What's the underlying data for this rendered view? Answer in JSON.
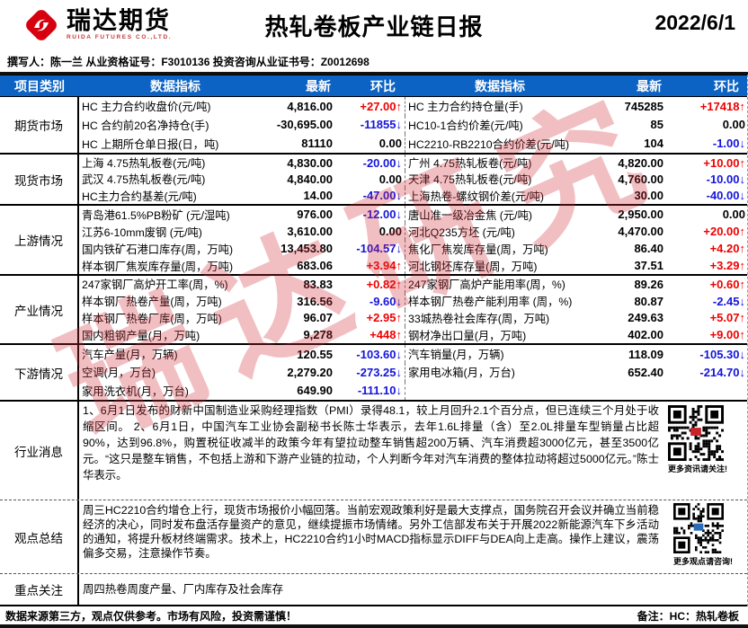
{
  "colors": {
    "header_bg": "#0c63c4",
    "up_red": "#ef0000",
    "down_blue": "#1414dc",
    "logo_red": "#d7000f",
    "watermark_red": "#d12a34"
  },
  "header": {
    "logo_text": "瑞达期货",
    "logo_sub": "RUIDA FUTURES CO.,LTD.",
    "title": "热轧卷板产业链日报",
    "date": "2022/6/1",
    "byline": "撰写人：陈一兰  从业资格证号：F3010136   投资咨询从业证书号：Z0012698"
  },
  "watermark": "瑞达研究",
  "table": {
    "headers": [
      "项目类别",
      "数据指标",
      "最新",
      "环比",
      "数据指标",
      "最新",
      "环比"
    ],
    "sections": [
      {
        "category": "期货市场",
        "rows": [
          {
            "left_label": "HC 主力合约收盘价(元/吨)",
            "left_value": "4,816.00",
            "left_change": "+27.00↑",
            "left_dir": "up",
            "right_label": "HC 主力合约持仓量(手)",
            "right_value": "745285",
            "right_change": "+17418↑",
            "right_dir": "up"
          },
          {
            "left_label": "HC 合约前20名净持仓(手)",
            "left_value": "-30,695.00",
            "left_change": "-11855↓",
            "left_dir": "down",
            "right_label": "HC10-1合约价差(元/吨)",
            "right_value": "85",
            "right_change": "0.00",
            "right_dir": "flat"
          },
          {
            "left_label": "HC 上期所仓单日报(日，吨)",
            "left_value": "81110",
            "left_change": "0.00",
            "left_dir": "flat",
            "right_label": "HC2210-RB2210合约价差(元/吨)",
            "right_value": "104",
            "right_change": "-1.00↓",
            "right_dir": "down"
          }
        ]
      },
      {
        "category": "现货市场",
        "rows": [
          {
            "left_label": "上海 4.75热轧板卷(元/吨)",
            "left_value": "4,830.00",
            "left_change": "-20.00↓",
            "left_dir": "down",
            "right_label": "广州 4.75热轧板卷(元/吨)",
            "right_value": "4,820.00",
            "right_change": "+10.00↑",
            "right_dir": "up"
          },
          {
            "left_label": "武汉 4.75热轧板卷(元/吨)",
            "left_value": "4,840.00",
            "left_change": "0.00",
            "left_dir": "flat",
            "right_label": "天津 4.75热轧板卷(元/吨)",
            "right_value": "4,760.00",
            "right_change": "-10.00↓",
            "right_dir": "down"
          },
          {
            "left_label": "HC主力合约基差(元/吨)",
            "left_value": "14.00",
            "left_change": "-47.00↓",
            "left_dir": "down",
            "right_label": "上海热卷-螺纹钢价差(元/吨)",
            "right_value": "30.00",
            "right_change": "-40.00↓",
            "right_dir": "down"
          }
        ]
      },
      {
        "category": "上游情况",
        "rows": [
          {
            "left_label": "青岛港61.5%PB粉矿 (元/湿吨)",
            "left_value": "976.00",
            "left_change": "-12.00↓",
            "left_dir": "down",
            "right_label": "唐山准一级冶金焦 (元/吨)",
            "right_value": "2,950.00",
            "right_change": "0.00",
            "right_dir": "flat"
          },
          {
            "left_label": "江苏6-10mm废钢 (元/吨)",
            "left_value": "3,610.00",
            "left_change": "0.00",
            "left_dir": "flat",
            "right_label": "河北Q235方坯 (元/吨)",
            "right_value": "4,470.00",
            "right_change": "+20.00↑",
            "right_dir": "up"
          },
          {
            "left_label": "国内铁矿石港口库存(周，万吨)",
            "left_value": "13,453.80",
            "left_change": "-104.57↓",
            "left_dir": "down",
            "right_label": "焦化厂焦炭库存量(周，万吨)",
            "right_value": "86.40",
            "right_change": "+4.20↑",
            "right_dir": "up"
          },
          {
            "left_label": "样本钢厂焦炭库存量(周，万吨)",
            "left_value": "683.06",
            "left_change": "+3.94↑",
            "left_dir": "up",
            "right_label": "河北钢坯库存量(周，万吨)",
            "right_value": "37.51",
            "right_change": "+3.29↑",
            "right_dir": "up"
          }
        ]
      },
      {
        "category": "产业情况",
        "rows": [
          {
            "left_label": "247家钢厂高炉开工率(周，%)",
            "left_value": "83.83",
            "left_change": "+0.82↑",
            "left_dir": "up",
            "right_label": "247家钢厂高炉产能用率(周，%)",
            "right_value": "89.26",
            "right_change": "+0.60↑",
            "right_dir": "up"
          },
          {
            "left_label": "样本钢厂热卷产量(周，万吨)",
            "left_value": "316.56",
            "left_change": "-9.60↓",
            "left_dir": "down",
            "right_label": "样本钢厂热卷产能利用率 (周，%)",
            "right_value": "80.87",
            "right_change": "-2.45↓",
            "right_dir": "down"
          },
          {
            "left_label": "样本钢厂热卷厂库(周，万吨)",
            "left_value": "96.07",
            "left_change": "+2.95↑",
            "left_dir": "up",
            "right_label": "33城热卷社会库存(周，万吨)",
            "right_value": "249.63",
            "right_change": "+5.07↑",
            "right_dir": "up"
          },
          {
            "left_label": "国内粗钢产量(月，万吨)",
            "left_value": "9,278",
            "left_change": "+448↑",
            "left_dir": "up",
            "right_label": "钢材净出口量(月，万吨)",
            "right_value": "402.00",
            "right_change": "+9.00↑",
            "right_dir": "up"
          }
        ]
      },
      {
        "category": "下游情况",
        "rows": [
          {
            "left_label": "汽车产量(月，万辆)",
            "left_value": "120.55",
            "left_change": "-103.60↓",
            "left_dir": "down",
            "right_label": "汽车销量(月，万辆)",
            "right_value": "118.09",
            "right_change": "-105.30↓",
            "right_dir": "down"
          },
          {
            "left_label": "空调(月，万台)",
            "left_value": "2,279.20",
            "left_change": "-273.25↓",
            "left_dir": "down",
            "right_label": "家用电冰箱(月，万台)",
            "right_value": "652.40",
            "right_change": "-214.70↓",
            "right_dir": "down"
          },
          {
            "left_label": "家用洗衣机(月，万台)",
            "left_value": "649.90",
            "left_change": "-111.10↓",
            "left_dir": "down",
            "right_label": "",
            "right_value": "",
            "right_change": "",
            "right_dir": "flat"
          }
        ]
      }
    ],
    "news": {
      "category": "行业消息",
      "text": "1、6月1日发布的财新中国制造业采购经理指数（PMI）录得48.1，较上月回升2.1个百分点，但已连续三个月处于收缩区间。 2、6月1日，中国汽车工业协会副秘书长陈士华表示，去年1.6L排量（含）至2.0L排量车型销量占比超90%，达到96.8%，购置税征收减半的政策今年有望拉动整车销售超200万辆、汽车消费超3000亿元，甚至3500亿元。“这只是整车销售，不包括上游和下游产业链的拉动，个人判断今年对汽车消费的整体拉动将超过5000亿元。”陈士华表示。",
      "qr_caption": "更多资讯请关注!"
    },
    "summary": {
      "category": "观点总结",
      "text": "周三HC2210合约增仓上行，现货市场报价小幅回落。当前宏观政策利好是最大支撑点，国务院召开会议并确立当前稳经济的决心，同时发布盘活存量资产的意见，继续提振市场情绪。另外工信部发布关于开展2022新能源汽车下乡活动的通知，将提升板材终端需求。技术上，HC2210合约1小时MACD指标显示DIFF与DEA向上走高。操作上建议，震荡偏多交易，注意操作节奏。",
      "qr_caption": "更多观点请咨询!"
    },
    "focus": {
      "category": "重点关注",
      "text": "周四热卷周度产量、厂内库存及社会库存"
    }
  },
  "footer": {
    "disclaimer": "数据来源第三方，观点仅供参考。市场有风险，投资需谨慎！",
    "note": "备注：HC：热轧卷板"
  }
}
